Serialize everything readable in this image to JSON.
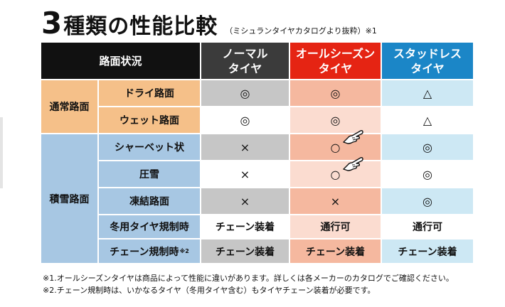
{
  "title": {
    "number": "3",
    "main": "種類の性能比較",
    "sub": "（ミシュランタイヤカタログより抜粋）※1"
  },
  "header": {
    "road": "路面状況",
    "normal_l1": "ノーマル",
    "normal_l2": "タイヤ",
    "all_l1": "オールシーズン",
    "all_l2": "タイヤ",
    "stud_l1": "スタッドレス",
    "stud_l2": "タイヤ"
  },
  "categories": {
    "normal": "通常路面",
    "snow": "積雪路面"
  },
  "rows": [
    {
      "condition": "ドライ路面",
      "normal": "◎",
      "all": "◎",
      "stud": "△"
    },
    {
      "condition": "ウェット路面",
      "normal": "◎",
      "all": "◎",
      "stud": "△"
    },
    {
      "condition": "シャーベット状",
      "normal": "×",
      "all": "○",
      "stud": "◎"
    },
    {
      "condition": "圧雪",
      "normal": "×",
      "all": "○",
      "stud": "◎"
    },
    {
      "condition": "凍結路面",
      "normal": "×",
      "all": "×",
      "stud": "◎"
    },
    {
      "condition": "冬用タイヤ規制時",
      "normal": "チェーン装着",
      "all": "通行可",
      "stud": "通行可"
    },
    {
      "condition": "チェーン規制時",
      "condition_sup": "※2",
      "normal": "チェーン装着",
      "all": "チェーン装着",
      "stud": "チェーン装着"
    }
  ],
  "notes": [
    "※1.オールシーズンタイヤは商品によって性能に違いがあります。詳しくは各メーカーのカタログでご確認ください。",
    "※2.チェーン規制時は、いかなるタイヤ（冬用タイヤ含む）もタイヤチェーン装着が必要です。"
  ],
  "colors": {
    "normal_header": "#3b3b3b",
    "all_season_header": "#e52413",
    "studless_header": "#1b86c7",
    "normal_road": "#f5c089",
    "snow_road": "#a7c7e3"
  },
  "icons": {
    "pointer": "pointing-hand-icon"
  }
}
